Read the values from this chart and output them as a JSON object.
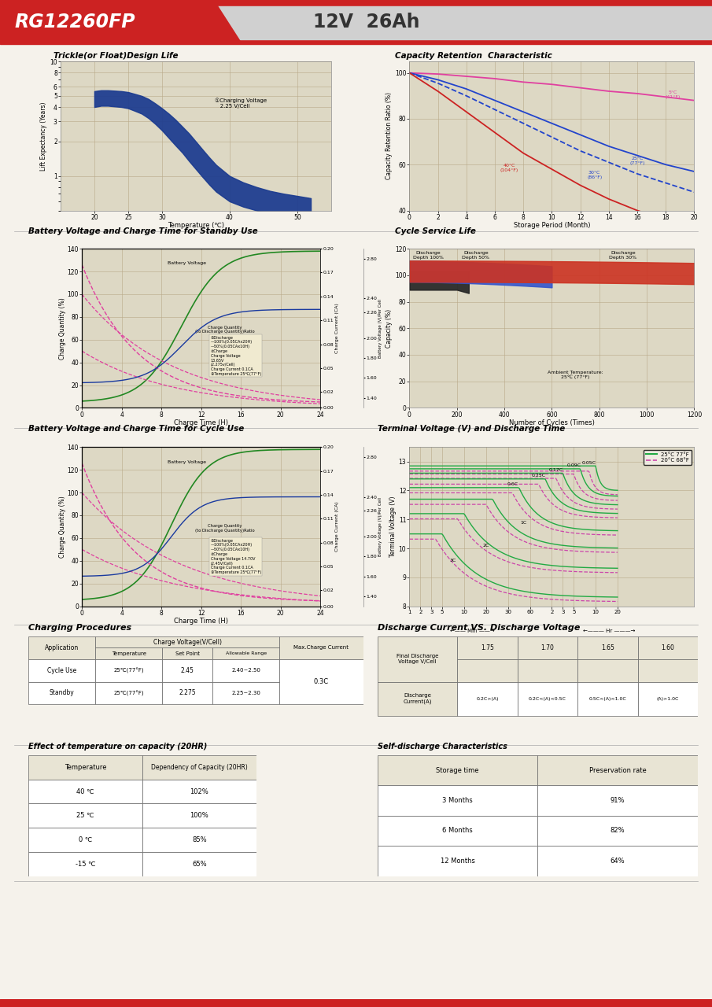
{
  "title_model": "RG12260FP",
  "title_spec": "12V  26Ah",
  "header_red": "#cc2222",
  "header_gray": "#d0d0d0",
  "body_bg": "#f5f2eb",
  "chart_bg": "#ddd8c4",
  "grid_color": "#b8a888",
  "table_header_bg": "#e8e4d4",
  "section_rows": [
    0.955,
    0.77,
    0.575,
    0.38,
    0.26,
    0.125,
    0.008
  ]
}
